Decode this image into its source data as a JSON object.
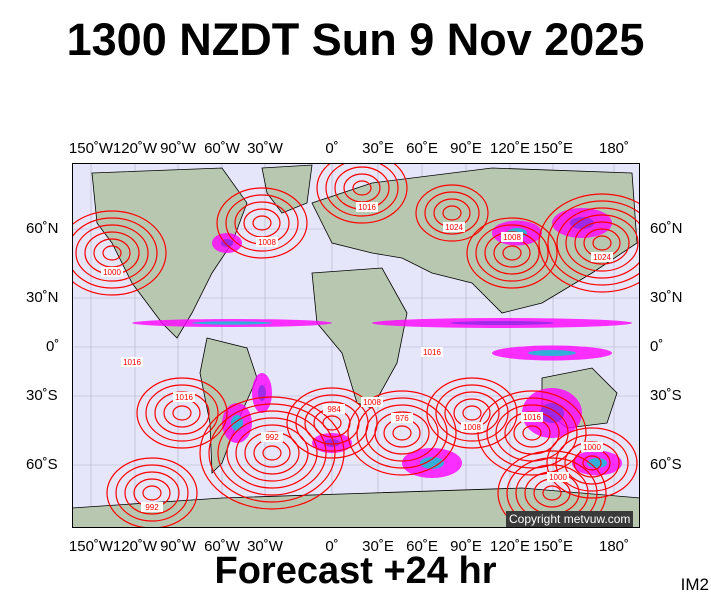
{
  "title": "1300 NZDT Sun 9 Nov 2025",
  "footer": "Forecast +24 hr",
  "image_tag": "IM2",
  "copyright": "Copyright metvuw.com",
  "lon_labels": [
    "150˚W",
    "120˚W",
    "90˚W",
    "60˚W",
    "30˚W",
    "0˚",
    "30˚E",
    "60˚E",
    "90˚E",
    "120˚E",
    "150˚E",
    "180˚"
  ],
  "lat_labels": [
    "60˚N",
    "30˚N",
    "0˚",
    "30˚S",
    "60˚S"
  ],
  "isobar_labels": [
    "1000",
    "1008",
    "1016",
    "1024",
    "992",
    "984",
    "976",
    "1008",
    "1016",
    "1000",
    "1016",
    "1024",
    "1008",
    "1000",
    "992",
    "1016",
    "1008",
    "1016"
  ],
  "colors": {
    "ocean": "#e6e6fa",
    "land": "#b8c8b0",
    "isobar": "#ff0000",
    "rain_heavy": "#ff00ff",
    "rain_moderate": "#8a2be2",
    "rain_light": "#00cfcf"
  }
}
